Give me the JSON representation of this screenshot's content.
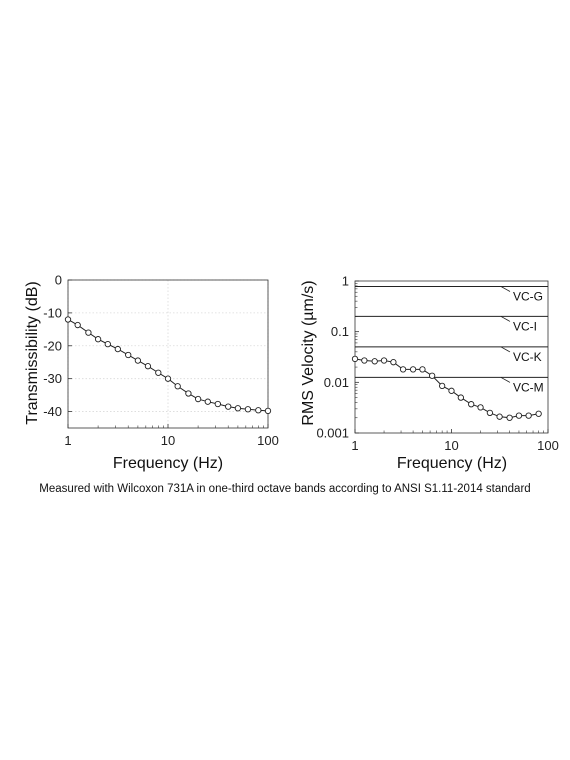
{
  "caption": "Measured with Wilcoxon 731A in one-third octave bands according to ANSI S1.11-2014 standard",
  "colors": {
    "line": "#222222",
    "grid": "#d9d9d9",
    "axis": "#333333"
  },
  "chart_data": [
    {
      "type": "line",
      "xlabel": "Frequency (Hz)",
      "ylabel": "Transmissibility (dB)",
      "xscale": "log",
      "xlim": [
        1,
        100
      ],
      "ylim": [
        -45,
        0
      ],
      "grid": true,
      "marker": "circle",
      "xticks": [
        1,
        10,
        100
      ],
      "xtick_labels": [
        "1",
        "10",
        "100"
      ],
      "yticks": [
        0,
        -10,
        -20,
        -30,
        -40
      ],
      "ytick_labels": [
        "0",
        "-10",
        "-20",
        "-30",
        "-40"
      ],
      "series": [
        {
          "x": [
            1,
            1.25,
            1.6,
            2,
            2.5,
            3.15,
            4,
            5,
            6.3,
            8,
            10,
            12.5,
            16,
            20,
            25,
            31.5,
            40,
            50,
            63,
            80,
            100
          ],
          "values": [
            -12,
            -13.7,
            -16,
            -18,
            -19.5,
            -21,
            -22.8,
            -24.5,
            -26.2,
            -28.2,
            -30,
            -32.3,
            -34.5,
            -36.2,
            -37,
            -37.7,
            -38.5,
            -39,
            -39.3,
            -39.6,
            -39.8
          ]
        }
      ]
    },
    {
      "type": "line",
      "xlabel": "Frequency (Hz)",
      "ylabel": "RMS Velocity (µm/s)",
      "xscale": "log",
      "yscale": "log",
      "xlim": [
        1,
        100
      ],
      "ylim": [
        0.001,
        1
      ],
      "grid": false,
      "marker": "circle",
      "xticks": [
        1,
        10,
        100
      ],
      "xtick_labels": [
        "1",
        "10",
        "100"
      ],
      "yticks": [
        1,
        0.1,
        0.01,
        0.001
      ],
      "ytick_labels": [
        "1",
        "0.1",
        "0.01",
        "0.001"
      ],
      "series": [
        {
          "x": [
            1,
            1.25,
            1.6,
            2,
            2.5,
            3.15,
            4,
            5,
            6.3,
            8,
            10,
            12.5,
            16,
            20,
            25,
            31.5,
            40,
            50,
            63,
            80
          ],
          "values": [
            0.029,
            0.027,
            0.026,
            0.027,
            0.025,
            0.018,
            0.018,
            0.018,
            0.0135,
            0.0085,
            0.0068,
            0.005,
            0.0037,
            0.0032,
            0.0025,
            0.0021,
            0.002,
            0.0022,
            0.0022,
            0.0024
          ]
        }
      ],
      "reference_lines": [
        {
          "label": "VC-G",
          "value": 0.78
        },
        {
          "label": "VC-I",
          "value": 0.2
        },
        {
          "label": "VC-K",
          "value": 0.05
        },
        {
          "label": "VC-M",
          "value": 0.0125
        }
      ]
    }
  ]
}
